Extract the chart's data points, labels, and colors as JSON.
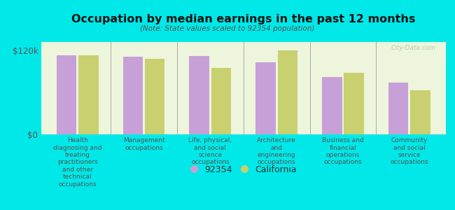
{
  "title": "Occupation by median earnings in the past 12 months",
  "subtitle": "(Note: State values scaled to 92354 population)",
  "categories": [
    "Health\ndiagnosing and\ntreating\npractitioners\nand other\ntechnical\noccupations",
    "Management\noccupations",
    "Life, physical,\nand social\nscience\noccupations",
    "Architecture\nand\nengineering\noccupations",
    "Business and\nfinancial\noperations\noccupations",
    "Community\nand social\nservice\noccupations"
  ],
  "values_92354": [
    113000,
    111000,
    112000,
    103000,
    82000,
    74000
  ],
  "values_california": [
    113000,
    108000,
    95000,
    120000,
    88000,
    63000
  ],
  "color_92354": "#c8a0d8",
  "color_california": "#c8d070",
  "background_color": "#00e8e8",
  "plot_bg_color": "#edf5dc",
  "ylim": [
    0,
    132000
  ],
  "yticks": [
    0,
    120000
  ],
  "ytick_labels": [
    "$0",
    "$120k"
  ],
  "legend_labels": [
    "92354",
    "California"
  ],
  "watermark": "City-Data.com"
}
